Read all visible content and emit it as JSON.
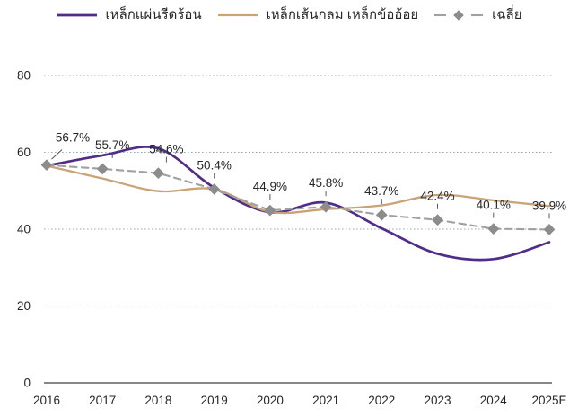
{
  "chart": {
    "background": "#FFFFFF",
    "text_color": "#262626"
  },
  "legend": [
    {
      "label": "เหล็กแผ่นรีดร้อน",
      "color": "#502D87"
    },
    {
      "label": "เหล็กเส้นกลม เหล็กข้ออ้อย",
      "color": "#C8A478"
    },
    {
      "label": "เฉลี่ย",
      "color": "#A0A0A0",
      "marker_color": "#8C8C8C"
    }
  ],
  "chart_data": {
    "type": "line",
    "title": "",
    "xlabel": "",
    "ylabel": "",
    "categories": [
      "2016",
      "2017",
      "2018",
      "2019",
      "2020",
      "2021",
      "2022",
      "2023",
      "2024",
      "2025E"
    ],
    "series": [
      {
        "name": "เหล็กแผ่นรีดร้อน",
        "color": "#502D87",
        "line_style": "solid",
        "smooth": true,
        "values": [
          56.5,
          59.2,
          61.0,
          50.8,
          44.4,
          46.9,
          40.2,
          33.6,
          32.2,
          36.6
        ]
      },
      {
        "name": "เหล็กเส้นกลม เหล็กข้ออ้อย",
        "color": "#C8A478",
        "line_style": "solid",
        "smooth": true,
        "values": [
          56.5,
          53.2,
          49.9,
          50.4,
          44.5,
          45.2,
          46.2,
          48.9,
          47.5,
          46.0
        ]
      },
      {
        "name": "เฉลี่ย",
        "color": "#A0A0A0",
        "line_style": "dashed",
        "marker": "diamond",
        "marker_color": "#8C8C8C",
        "smooth": false,
        "values": [
          56.7,
          55.7,
          54.6,
          50.4,
          44.9,
          45.8,
          43.7,
          42.4,
          40.1,
          39.9
        ],
        "data_labels": [
          "56.7%",
          "55.7%",
          "54.6%",
          "50.4%",
          "44.9%",
          "45.8%",
          "43.7%",
          "42.4%",
          "40.1%",
          "39.9%"
        ]
      }
    ],
    "y_ticks": [
      0,
      20,
      40,
      60,
      80
    ],
    "ylim": [
      0,
      80
    ],
    "grid": "horizontal-dotted",
    "gridline_color": "#8FAECE",
    "axis_color": "#404040",
    "label_color": "#262626",
    "legend_position": "top"
  }
}
